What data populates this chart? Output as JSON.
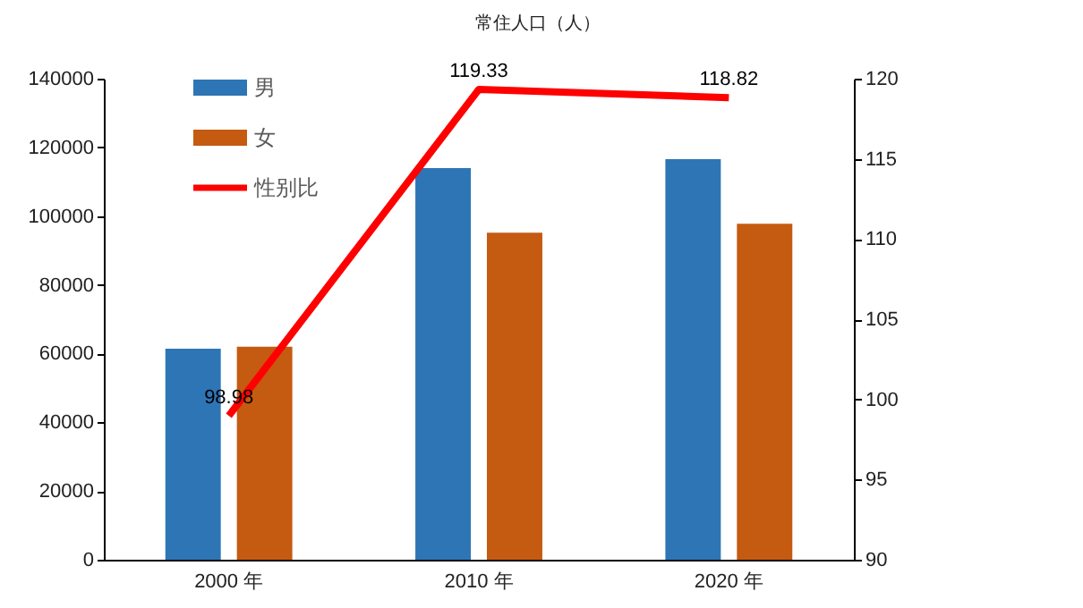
{
  "chart_data": {
    "type": "bar",
    "title": "常住人口（人）",
    "categories": [
      "2000 年",
      "2010 年",
      "2020 年"
    ],
    "series": [
      {
        "name": "男",
        "color": "#2e75b6",
        "values": [
          61400,
          114000,
          116600
        ]
      },
      {
        "name": "女",
        "color": "#c55a11",
        "values": [
          62000,
          95200,
          97800
        ]
      },
      {
        "name": "性别比",
        "type": "line",
        "axis": "y2",
        "color": "#ff0000",
        "values": [
          98.98,
          119.33,
          118.82
        ],
        "value_labels": [
          "98.98",
          "119.33",
          "118.82"
        ]
      }
    ],
    "ylim": [
      0,
      140000
    ],
    "yticks": [
      0,
      20000,
      40000,
      60000,
      80000,
      100000,
      120000,
      140000
    ],
    "y2lim": [
      90,
      120
    ],
    "y2ticks": [
      90,
      95,
      100,
      105,
      110,
      115,
      120
    ],
    "grid": false,
    "legend": "top left",
    "marker": "none",
    "line_style": "solid"
  }
}
